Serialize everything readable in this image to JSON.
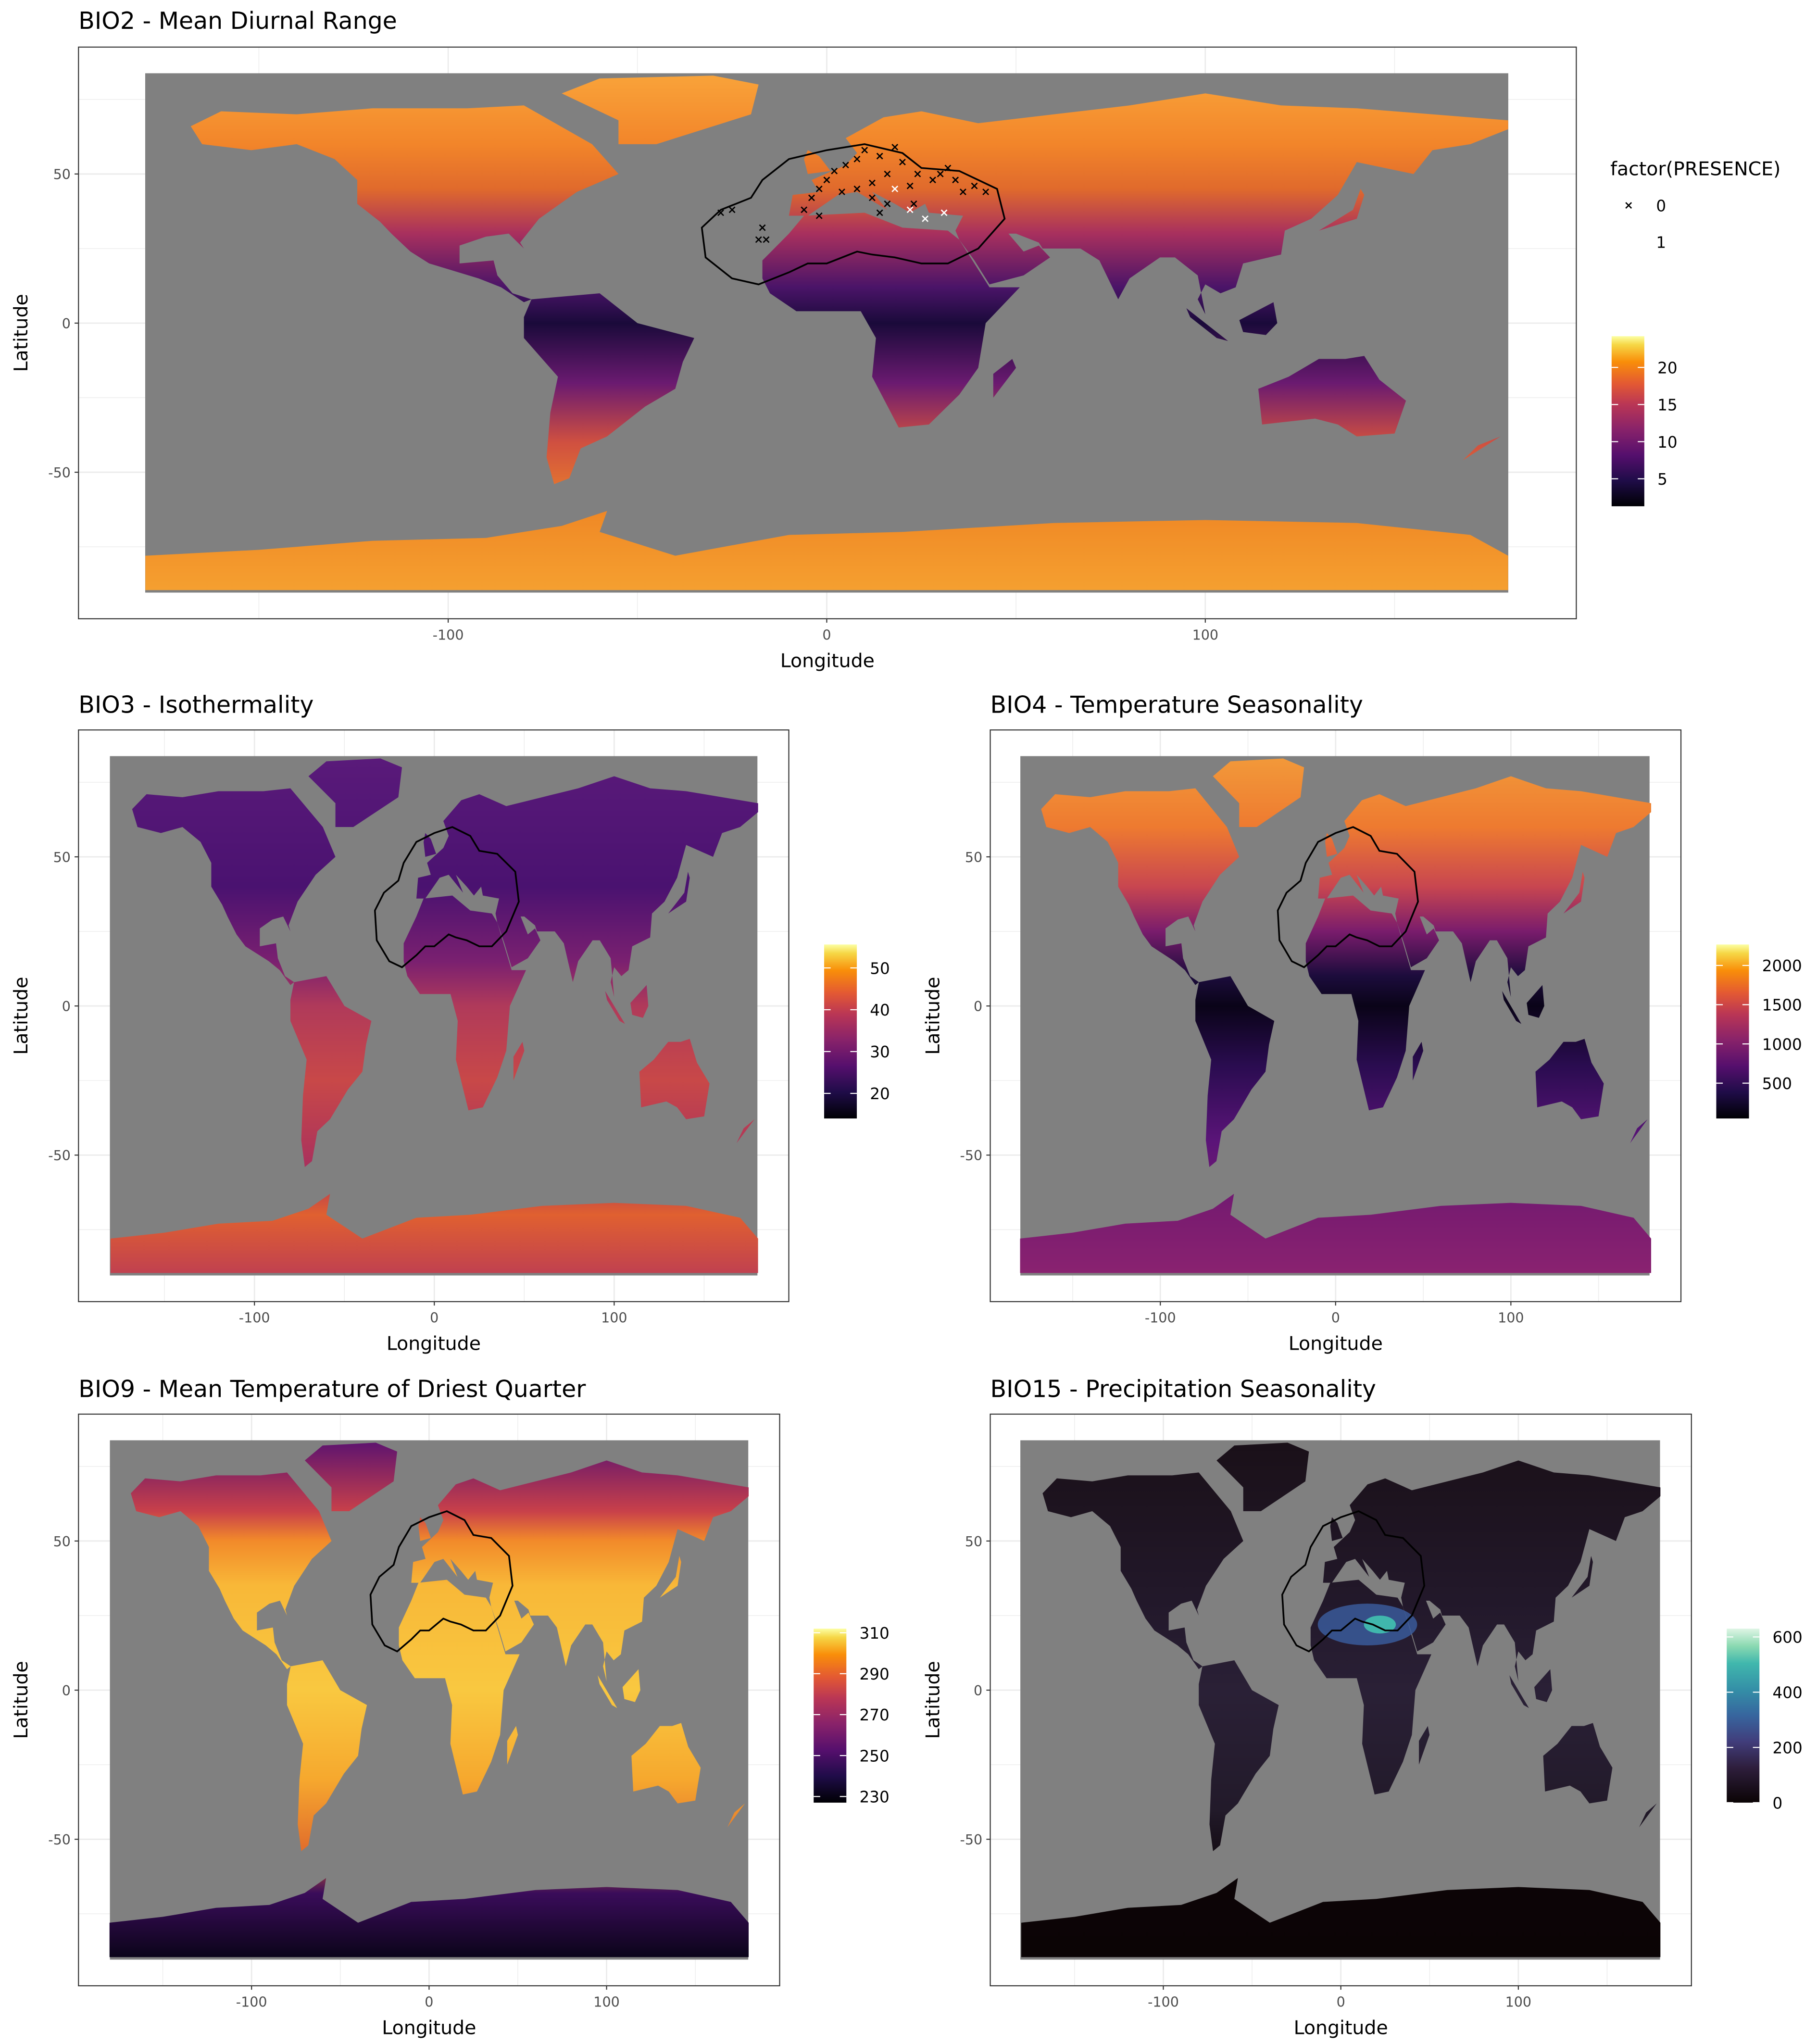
{
  "colors": {
    "ocean": "#808080",
    "grid": "#ebebeb",
    "panel_border": "#333333"
  },
  "chart_data": [
    {
      "type": "heatmap",
      "id": "bio2",
      "title": "BIO2 - Mean Diurnal Range",
      "xlabel": "Longitude",
      "ylabel": "Latitude",
      "xlim": [
        -180,
        180
      ],
      "ylim": [
        -90,
        84
      ],
      "x_ticks": [
        -100,
        0,
        100
      ],
      "y_ticks": [
        -50,
        0,
        50
      ],
      "x_tick_labels": [
        "-100",
        "0",
        "100"
      ],
      "y_tick_labels": [
        "-50",
        "0",
        "50"
      ],
      "grid": true,
      "colorscale": "inferno",
      "legend_range": [
        1.3,
        24.2
      ],
      "legend_ticks": [
        5,
        10,
        15,
        20
      ],
      "legend_tick_labels": [
        "5",
        "10",
        "15",
        "20"
      ],
      "legend_position": "right",
      "shape_legend": {
        "title": "factor(PRESENCE)",
        "entries": [
          {
            "label": "0",
            "shape": "cross",
            "color": "#000000"
          },
          {
            "label": "1",
            "shape": "cross",
            "color": "#ffffff"
          }
        ]
      },
      "points": [
        {
          "lon": -28,
          "lat": 37,
          "presence": 0
        },
        {
          "lon": -25,
          "lat": 38,
          "presence": 0
        },
        {
          "lon": -17,
          "lat": 32,
          "presence": 0
        },
        {
          "lon": -18,
          "lat": 28,
          "presence": 0
        },
        {
          "lon": -16,
          "lat": 28,
          "presence": 0
        },
        {
          "lon": -6,
          "lat": 38,
          "presence": 0
        },
        {
          "lon": -4,
          "lat": 42,
          "presence": 0
        },
        {
          "lon": -2,
          "lat": 45,
          "presence": 0
        },
        {
          "lon": 0,
          "lat": 48,
          "presence": 0
        },
        {
          "lon": 2,
          "lat": 51,
          "presence": 0
        },
        {
          "lon": 5,
          "lat": 53,
          "presence": 0
        },
        {
          "lon": 8,
          "lat": 55,
          "presence": 0
        },
        {
          "lon": 10,
          "lat": 58,
          "presence": 0
        },
        {
          "lon": 14,
          "lat": 56,
          "presence": 0
        },
        {
          "lon": 18,
          "lat": 59,
          "presence": 0
        },
        {
          "lon": 20,
          "lat": 54,
          "presence": 0
        },
        {
          "lon": 16,
          "lat": 50,
          "presence": 0
        },
        {
          "lon": 12,
          "lat": 47,
          "presence": 0
        },
        {
          "lon": 8,
          "lat": 45,
          "presence": 0
        },
        {
          "lon": 4,
          "lat": 44,
          "presence": 0
        },
        {
          "lon": 12,
          "lat": 42,
          "presence": 0
        },
        {
          "lon": 16,
          "lat": 40,
          "presence": 0
        },
        {
          "lon": 22,
          "lat": 46,
          "presence": 0
        },
        {
          "lon": 24,
          "lat": 50,
          "presence": 0
        },
        {
          "lon": 28,
          "lat": 48,
          "presence": 0
        },
        {
          "lon": 23,
          "lat": 40,
          "presence": 0
        },
        {
          "lon": 30,
          "lat": 50,
          "presence": 0
        },
        {
          "lon": 34,
          "lat": 48,
          "presence": 0
        },
        {
          "lon": 36,
          "lat": 44,
          "presence": 0
        },
        {
          "lon": 39,
          "lat": 46,
          "presence": 0
        },
        {
          "lon": 42,
          "lat": 44,
          "presence": 0
        },
        {
          "lon": 32,
          "lat": 52,
          "presence": 0
        },
        {
          "lon": 14,
          "lat": 37,
          "presence": 0
        },
        {
          "lon": -2,
          "lat": 36,
          "presence": 0
        },
        {
          "lon": 26,
          "lat": 35,
          "presence": 1
        },
        {
          "lon": 31,
          "lat": 37,
          "presence": 1
        },
        {
          "lon": 22,
          "lat": 38,
          "presence": 1
        },
        {
          "lon": 18,
          "lat": 45,
          "presence": 1
        }
      ]
    },
    {
      "type": "heatmap",
      "id": "bio3",
      "title": "BIO3 - Isothermality",
      "xlabel": "Longitude",
      "ylabel": "Latitude",
      "xlim": [
        -180,
        180
      ],
      "ylim": [
        -90,
        84
      ],
      "x_ticks": [
        -100,
        0,
        100
      ],
      "y_ticks": [
        -50,
        0,
        50
      ],
      "x_tick_labels": [
        "-100",
        "0",
        "100"
      ],
      "y_tick_labels": [
        "-50",
        "0",
        "50"
      ],
      "grid": true,
      "colorscale": "inferno",
      "legend_range": [
        14,
        55.6
      ],
      "legend_ticks": [
        20,
        30,
        40,
        50
      ],
      "legend_tick_labels": [
        "20",
        "30",
        "40",
        "50"
      ],
      "legend_position": "right"
    },
    {
      "type": "heatmap",
      "id": "bio4",
      "title": "BIO4 - Temperature Seasonality",
      "xlabel": "Longitude",
      "ylabel": "Latitude",
      "xlim": [
        -180,
        180
      ],
      "ylim": [
        -90,
        84
      ],
      "x_ticks": [
        -100,
        0,
        100
      ],
      "y_ticks": [
        -50,
        0,
        50
      ],
      "x_tick_labels": [
        "-100",
        "0",
        "100"
      ],
      "y_tick_labels": [
        "-50",
        "0",
        "50"
      ],
      "grid": true,
      "colorscale": "inferno",
      "legend_range": [
        50,
        2267
      ],
      "legend_ticks": [
        500,
        1000,
        1500,
        2000
      ],
      "legend_tick_labels": [
        "500",
        "1000",
        "1500",
        "2000"
      ],
      "legend_position": "right"
    },
    {
      "type": "heatmap",
      "id": "bio9",
      "title": "BIO9 - Mean Temperature of Driest Quarter",
      "xlabel": "Longitude",
      "ylabel": "Latitude",
      "xlim": [
        -180,
        180
      ],
      "ylim": [
        -90,
        84
      ],
      "x_ticks": [
        -100,
        0,
        100
      ],
      "y_ticks": [
        -50,
        0,
        50
      ],
      "x_tick_labels": [
        "-100",
        "0",
        "100"
      ],
      "y_tick_labels": [
        "-50",
        "0",
        "50"
      ],
      "grid": true,
      "colorscale": "inferno",
      "legend_range": [
        227,
        312
      ],
      "legend_ticks": [
        230,
        250,
        270,
        290,
        310
      ],
      "legend_tick_labels": [
        "230",
        "250",
        "270",
        "290",
        "310"
      ],
      "legend_position": "right"
    },
    {
      "type": "heatmap",
      "id": "bio15",
      "title": "BIO15 - Precipitation Seasonality",
      "xlabel": "Longitude",
      "ylabel": "Latitude",
      "xlim": [
        -180,
        180
      ],
      "ylim": [
        -90,
        84
      ],
      "x_ticks": [
        -100,
        0,
        100
      ],
      "y_ticks": [
        -50,
        0,
        50
      ],
      "x_tick_labels": [
        "-100",
        "0",
        "100"
      ],
      "y_tick_labels": [
        "-50",
        "0",
        "50"
      ],
      "grid": true,
      "colorscale": "mako",
      "legend_range": [
        0,
        630
      ],
      "legend_ticks": [
        0,
        200,
        400,
        600
      ],
      "legend_tick_labels": [
        "0",
        "200",
        "400",
        "600"
      ],
      "legend_position": "right"
    }
  ]
}
